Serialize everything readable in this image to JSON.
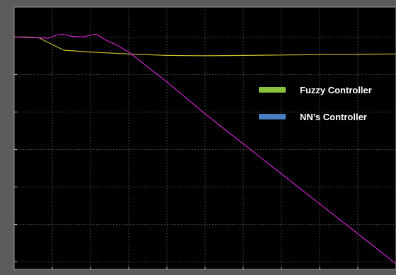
{
  "chart_data": {
    "type": "line",
    "title": "",
    "xlabel": "",
    "ylabel": "",
    "xlim": [
      0,
      10
    ],
    "ylim": [
      -6.2,
      0.8
    ],
    "grid": true,
    "legend_position": "right",
    "x_ticks": [
      0,
      1,
      2,
      3,
      4,
      5,
      6,
      7,
      8,
      9,
      10
    ],
    "y_ticks": [
      0,
      -1,
      -2,
      -3,
      -4,
      -5,
      -6
    ],
    "series": [
      {
        "name": "Fuzzy Controller",
        "color": "#c8bd2a",
        "x": [
          0,
          0.35,
          0.65,
          0.9,
          1.3,
          2,
          3,
          4,
          5,
          6,
          7,
          8,
          9,
          10
        ],
        "y": [
          0,
          0,
          -0.02,
          -0.15,
          -0.35,
          -0.4,
          -0.45,
          -0.49,
          -0.5,
          -0.49,
          -0.48,
          -0.47,
          -0.46,
          -0.45
        ]
      },
      {
        "name": "NN's Controller",
        "color": "#cc22cc",
        "x": [
          0,
          0.6,
          0.9,
          1.1,
          1.25,
          1.5,
          1.8,
          2.0,
          2.15,
          2.4,
          2.7,
          3.0,
          4,
          5,
          6,
          7,
          8,
          9,
          10
        ],
        "y": [
          0,
          -0.02,
          -0.03,
          0.05,
          0.08,
          0.02,
          0,
          0.05,
          0.08,
          -0.08,
          -0.22,
          -0.4,
          -1.2,
          -2.05,
          -2.85,
          -3.65,
          -4.45,
          -5.25,
          -6.05
        ]
      }
    ]
  },
  "legend": {
    "items": [
      {
        "label": "Fuzzy Controller",
        "color": "#8ac33e"
      },
      {
        "label": "NN’s Controller",
        "color": "#4a7fc1"
      }
    ]
  }
}
